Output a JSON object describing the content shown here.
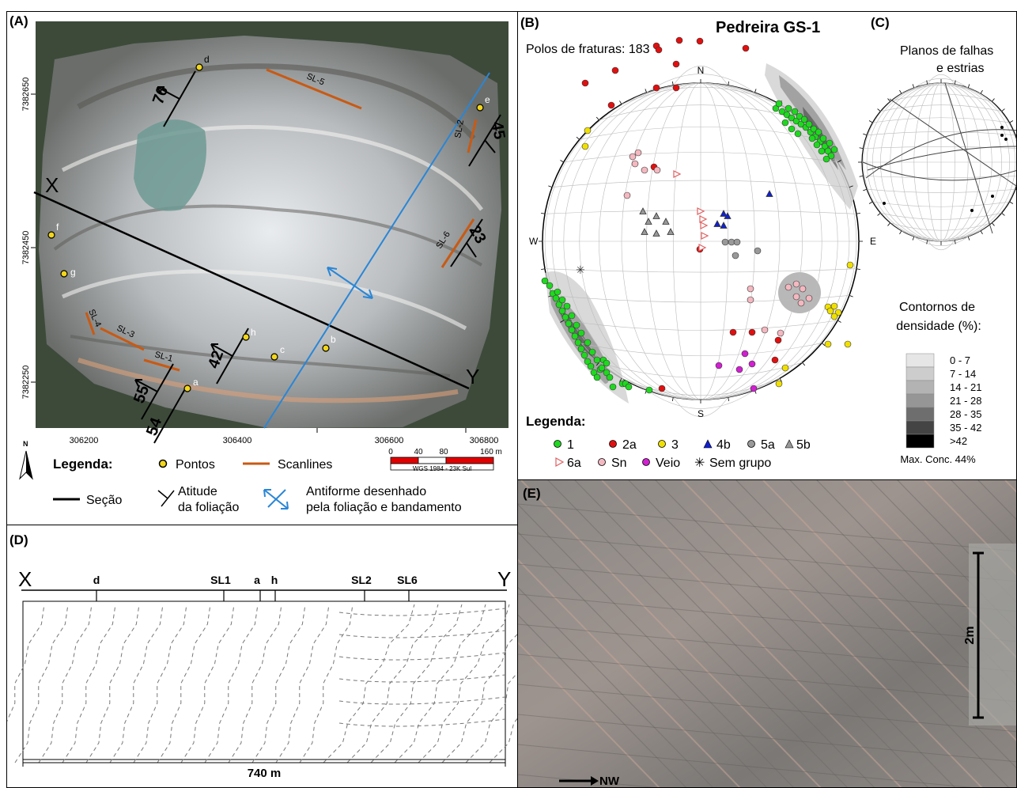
{
  "panelA": {
    "label": "(A)",
    "x_ticks": [
      "306200",
      "306400",
      "306600",
      "306800"
    ],
    "y_ticks": [
      "7382650",
      "7382450",
      "7382250"
    ],
    "section_start": "X",
    "section_end": "Y",
    "points": [
      "d",
      "e",
      "f",
      "g",
      "h",
      "c",
      "b",
      "a"
    ],
    "scanlines": [
      "SL-5",
      "SL-2",
      "SL-6",
      "SL-4",
      "SL-3",
      "SL-1"
    ],
    "foliation_dips": [
      "76",
      "45",
      "23",
      "42",
      "55",
      "54"
    ],
    "north_label": "N",
    "scale_ticks": [
      "0",
      "40",
      "80",
      "160 m"
    ],
    "datum": "WGS 1984 - 23K Sul",
    "legend_title": "Legenda:",
    "legend_points": "Pontos",
    "legend_scanlines": "Scanlines",
    "legend_section": "Seção",
    "legend_foliation_1": "Atitude",
    "legend_foliation_2": "da foliação",
    "legend_antiform_1": "Antiforme desenhado",
    "legend_antiform_2": "pela foliação e bandamento"
  },
  "panelB": {
    "label": "(B)",
    "title": "Pedreira GS-1",
    "poles": "Polos de fraturas: 183",
    "N": "N",
    "S": "S",
    "E": "E",
    "W": "W",
    "legend_title": "Legenda:",
    "groups": [
      "1",
      "2a",
      "3",
      "4b",
      "5a",
      "5b",
      "6a",
      "Sn",
      "Veio",
      "Sem grupo"
    ],
    "colors": {
      "g1": "#1fd81f",
      "g2a": "#e01010",
      "g3": "#f0e000",
      "g4b": "#1020d0",
      "g5a": "#999999",
      "g5b": "#999999",
      "g6a": "#e06060",
      "gSn": "#f4b8c0",
      "gVeio": "#d020d0"
    }
  },
  "panelC": {
    "label": "(C)",
    "title_1": "Planos de falhas",
    "title_2": "e estrias",
    "contours_title_1": "Contornos de",
    "contours_title_2": "densidade (%):",
    "classes": [
      "0 - 7",
      "7 - 14",
      "14 - 21",
      "21 - 28",
      "28 - 35",
      "35 - 42",
      ">42"
    ],
    "class_colors": [
      "#e6e6e6",
      "#cdcdcd",
      "#b3b3b3",
      "#969696",
      "#6e6e6e",
      "#444444",
      "#000000"
    ],
    "max_conc": "Max. Conc. 44%"
  },
  "panelD": {
    "label": "(D)",
    "start": "X",
    "end": "Y",
    "markers": [
      "d",
      "SL1",
      "a",
      "h",
      "SL2",
      "SL6"
    ],
    "length": "740 m"
  },
  "panelE": {
    "label": "(E)",
    "scale": "2m",
    "direction": "NW"
  }
}
